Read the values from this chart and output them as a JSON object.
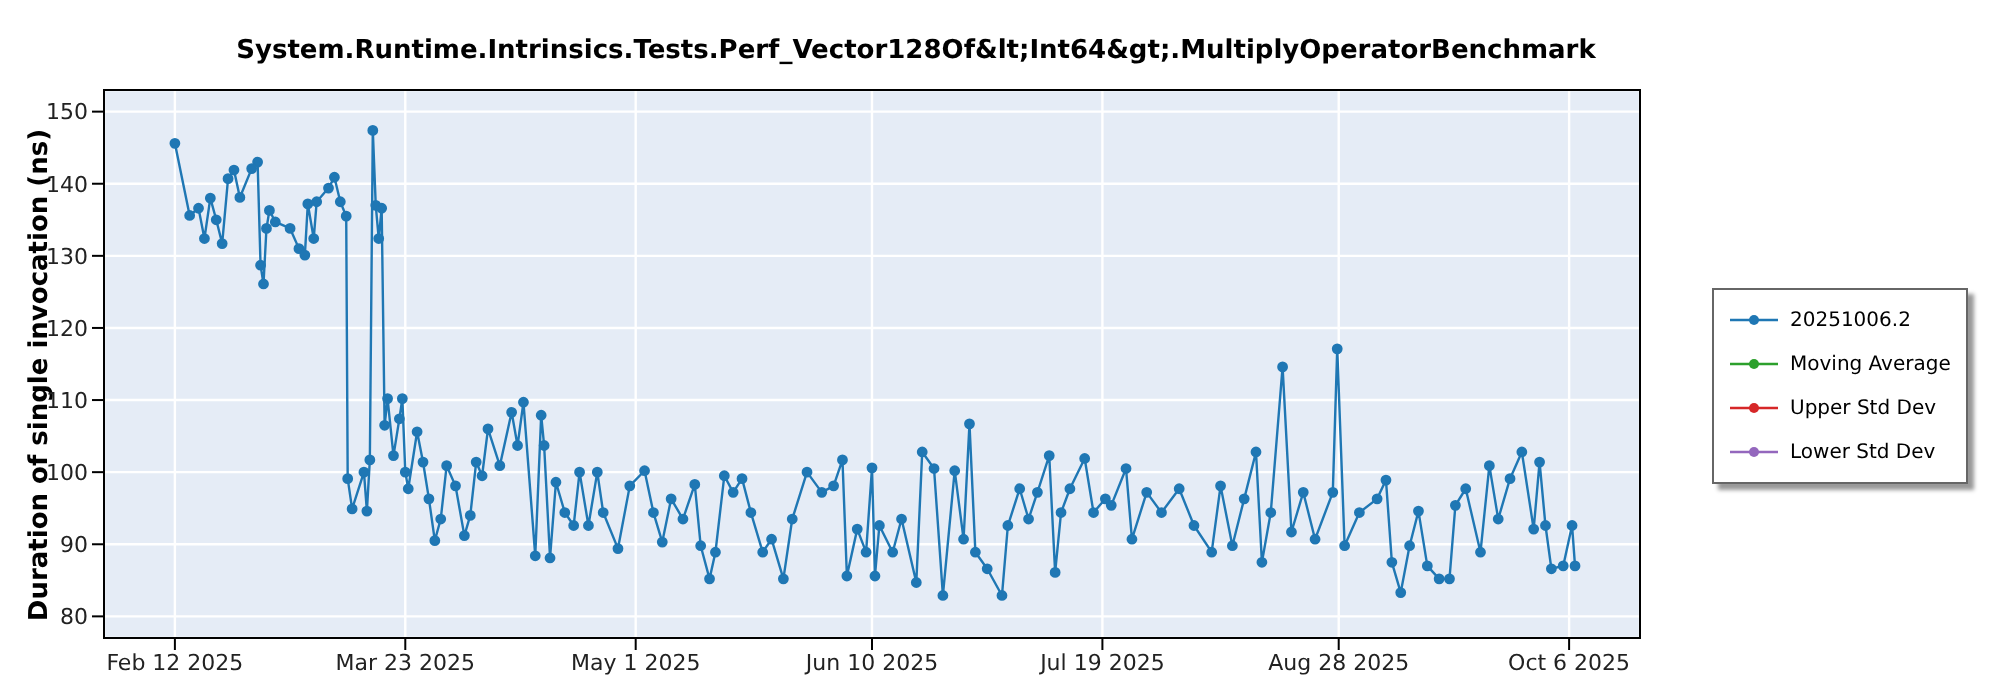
{
  "chart_data": {
    "type": "line",
    "title": "System.Runtime.Intrinsics.Tests.Perf_Vector128Of&lt;Int64&gt;.MultiplyOperatorBenchmark",
    "ylabel": "Duration of single invocation (ns)",
    "x": [
      "2025-02-12",
      "2025-02-14T12:00",
      "2025-02-16",
      "2025-02-17",
      "2025-02-18",
      "2025-02-19",
      "2025-02-20",
      "2025-02-21",
      "2025-02-22",
      "2025-02-23",
      "2025-02-25",
      "2025-02-26",
      "2025-02-26T12:00",
      "2025-02-27",
      "2025-02-27T12:00",
      "2025-02-28",
      "2025-03-01",
      "2025-03-03T12:00",
      "2025-03-05",
      "2025-03-06",
      "2025-03-06T12:00",
      "2025-03-07T12:00",
      "2025-03-08",
      "2025-03-10",
      "2025-03-11",
      "2025-03-12",
      "2025-03-13",
      "2025-03-13T06:00",
      "2025-03-14",
      "2025-03-16",
      "2025-03-16T12:00",
      "2025-03-17",
      "2025-03-17T12:00",
      "2025-03-18",
      "2025-03-18T12:00",
      "2025-03-19",
      "2025-03-19T12:00",
      "2025-03-20",
      "2025-03-21",
      "2025-03-22",
      "2025-03-22T12:00",
      "2025-03-23",
      "2025-03-23T12:00",
      "2025-03-25",
      "2025-03-26",
      "2025-03-27",
      "2025-03-28",
      "2025-03-29",
      "2025-03-30",
      "2025-03-31T12:00",
      "2025-04-02",
      "2025-04-03",
      "2025-04-04",
      "2025-04-05",
      "2025-04-06",
      "2025-04-08",
      "2025-04-10",
      "2025-04-11",
      "2025-04-12",
      "2025-04-14",
      "2025-04-15",
      "2025-04-15T12:00",
      "2025-04-16T12:00",
      "2025-04-17T12:00",
      "2025-04-19",
      "2025-04-20T12:00",
      "2025-04-21T12:00",
      "2025-04-23",
      "2025-04-24T12:00",
      "2025-04-25T12:00",
      "2025-04-28",
      "2025-04-30",
      "2025-05-02T12:00",
      "2025-05-04",
      "2025-05-05T12:00",
      "2025-05-07",
      "2025-05-09",
      "2025-05-11",
      "2025-05-12",
      "2025-05-13T12:00",
      "2025-05-14T12:00",
      "2025-05-16",
      "2025-05-17T12:00",
      "2025-05-19",
      "2025-05-20T12:00",
      "2025-05-22T12:00",
      "2025-05-24",
      "2025-05-26",
      "2025-05-27T12:00",
      "2025-05-30",
      "2025-06-01T12:00",
      "2025-06-03T12:00",
      "2025-06-05",
      "2025-06-05T18:00",
      "2025-06-07T12:00",
      "2025-06-09",
      "2025-06-10",
      "2025-06-10T12:00",
      "2025-06-11T06:00",
      "2025-06-13T12:00",
      "2025-06-15",
      "2025-06-17T12:00",
      "2025-06-18T12:00",
      "2025-06-20T12:00",
      "2025-06-22",
      "2025-06-24",
      "2025-06-25T12:00",
      "2025-06-26T12:00",
      "2025-06-27T12:00",
      "2025-06-29T12:00",
      "2025-07-02",
      "2025-07-03",
      "2025-07-05",
      "2025-07-06T12:00",
      "2025-07-08",
      "2025-07-10",
      "2025-07-11",
      "2025-07-12",
      "2025-07-13T12:00",
      "2025-07-16",
      "2025-07-17T12:00",
      "2025-07-19T12:00",
      "2025-07-20T12:00",
      "2025-07-23",
      "2025-07-24",
      "2025-07-26T12:00",
      "2025-07-29",
      "2025-08-01",
      "2025-08-03T12:00",
      "2025-08-06T12:00",
      "2025-08-08",
      "2025-08-10",
      "2025-08-12",
      "2025-08-14",
      "2025-08-15",
      "2025-08-16T12:00",
      "2025-08-18T12:00",
      "2025-08-20",
      "2025-08-22",
      "2025-08-24",
      "2025-08-27",
      "2025-08-27T18:00",
      "2025-08-29",
      "2025-08-31T12:00",
      "2025-09-03T12:00",
      "2025-09-05",
      "2025-09-06",
      "2025-09-07T12:00",
      "2025-09-09",
      "2025-09-10T12:00",
      "2025-09-12",
      "2025-09-14",
      "2025-09-15T18:00",
      "2025-09-16T18:00",
      "2025-09-18T12:00",
      "2025-09-21",
      "2025-09-22T12:00",
      "2025-09-24",
      "2025-09-26",
      "2025-09-28",
      "2025-09-30",
      "2025-10-01",
      "2025-10-02",
      "2025-10-03",
      "2025-10-05",
      "2025-10-06T12:00",
      "2025-10-07"
    ],
    "series": [
      {
        "name": "20251006.2",
        "color": "#1f77b4",
        "values": [
          145.6,
          135.6,
          136.6,
          132.4,
          138,
          135,
          131.7,
          140.7,
          141.9,
          138.1,
          142.1,
          143,
          128.7,
          126.1,
          133.8,
          136.3,
          134.7,
          133.8,
          131,
          130.1,
          137.2,
          132.4,
          137.5,
          139.4,
          140.9,
          137.5,
          135.5,
          99.1,
          94.9,
          100,
          94.6,
          101.7,
          147.4,
          137,
          132.4,
          136.6,
          106.5,
          110.2,
          102.3,
          107.4,
          110.2,
          100,
          97.7,
          105.6,
          101.4,
          96.3,
          90.5,
          93.5,
          100.9,
          98.1,
          91.2,
          94,
          101.4,
          99.5,
          106,
          100.9,
          108.3,
          103.7,
          109.7,
          88.4,
          107.9,
          103.7,
          88.1,
          98.6,
          94.4,
          92.6,
          100,
          92.6,
          100,
          94.4,
          89.4,
          98.1,
          100.2,
          94.4,
          90.3,
          96.3,
          93.5,
          98.3,
          89.8,
          85.2,
          88.9,
          99.5,
          97.2,
          99.1,
          94.4,
          88.9,
          90.7,
          85.2,
          93.5,
          100,
          97.2,
          98.1,
          101.7,
          85.6,
          92.1,
          88.9,
          100.6,
          85.6,
          92.6,
          88.9,
          93.5,
          84.7,
          102.8,
          100.5,
          82.9,
          100.2,
          90.7,
          106.7,
          88.9,
          86.6,
          82.9,
          92.6,
          97.7,
          93.5,
          97.2,
          102.3,
          86.1,
          94.4,
          97.7,
          101.9,
          94.4,
          96.3,
          95.4,
          100.5,
          90.7,
          97.2,
          94.4,
          97.7,
          92.6,
          88.9,
          98.1,
          89.8,
          96.3,
          102.8,
          87.5,
          94.4,
          114.6,
          91.7,
          97.2,
          90.7,
          97.2,
          117.1,
          89.8,
          94.4,
          96.3,
          98.9,
          87.5,
          83.3,
          89.8,
          94.6,
          87,
          85.2,
          85.2,
          95.4,
          97.7,
          88.9,
          100.9,
          93.5,
          99.1,
          102.8,
          92.1,
          101.4,
          92.6,
          86.6,
          87,
          92.6,
          87
        ]
      },
      {
        "name": "Moving Average",
        "color": "#2ca02c",
        "values": [
          null,
          null,
          null,
          null,
          null,
          null,
          null,
          null,
          null,
          null,
          null,
          null,
          null,
          null,
          null,
          null,
          null,
          null,
          null,
          null,
          null,
          null,
          null,
          null,
          null,
          null,
          null,
          null,
          null,
          null,
          null,
          null,
          null,
          null,
          null,
          null,
          null,
          null,
          null,
          null,
          null,
          null,
          null,
          null,
          null,
          null,
          null,
          null,
          null,
          null,
          null,
          null,
          null,
          null,
          null,
          null,
          null,
          null,
          null,
          null,
          null,
          null,
          null,
          null,
          null,
          null,
          null,
          null,
          null,
          null,
          null,
          null,
          null,
          null,
          null,
          null,
          null,
          null,
          null,
          null,
          null,
          null,
          null,
          null,
          null,
          null,
          null,
          null,
          null,
          null,
          null,
          null,
          null,
          null,
          null,
          null,
          null,
          null,
          null,
          null,
          null,
          null,
          null,
          null,
          null,
          null,
          null,
          null,
          null,
          null,
          null,
          null,
          null,
          null,
          null,
          null,
          null,
          null,
          null,
          null,
          null,
          null,
          null,
          null,
          null,
          null,
          null,
          null,
          null,
          null,
          null,
          null,
          null,
          null,
          null,
          null,
          null,
          null,
          null,
          null,
          null,
          null,
          null,
          null,
          null,
          null,
          null,
          null,
          null,
          null,
          null,
          null,
          null,
          null,
          null,
          null,
          null,
          null,
          null,
          null,
          null,
          null,
          null,
          null,
          null,
          null,
          null
        ]
      },
      {
        "name": "Upper Std Dev",
        "color": "#d62728",
        "values": [
          null,
          null,
          null,
          null,
          null,
          null,
          null,
          null,
          null,
          null,
          null,
          null,
          null,
          null,
          null,
          null,
          null,
          null,
          null,
          null,
          null,
          null,
          null,
          null,
          null,
          null,
          null,
          null,
          null,
          null,
          null,
          null,
          null,
          null,
          null,
          null,
          null,
          null,
          null,
          null,
          null,
          null,
          null,
          null,
          null,
          null,
          null,
          null,
          null,
          null,
          null,
          null,
          null,
          null,
          null,
          null,
          null,
          null,
          null,
          null,
          null,
          null,
          null,
          null,
          null,
          null,
          null,
          null,
          null,
          null,
          null,
          null,
          null,
          null,
          null,
          null,
          null,
          null,
          null,
          null,
          null,
          null,
          null,
          null,
          null,
          null,
          null,
          null,
          null,
          null,
          null,
          null,
          null,
          null,
          null,
          null,
          null,
          null,
          null,
          null,
          null,
          null,
          null,
          null,
          null,
          null,
          null,
          null,
          null,
          null,
          null,
          null,
          null,
          null,
          null,
          null,
          null,
          null,
          null,
          null,
          null,
          null,
          null,
          null,
          null,
          null,
          null,
          null,
          null,
          null,
          null,
          null,
          null,
          null,
          null,
          null,
          null,
          null,
          null,
          null,
          null,
          null,
          null,
          null,
          null,
          null,
          null,
          null,
          null,
          null,
          null,
          null,
          null,
          null,
          null,
          null,
          null,
          null,
          null,
          null,
          null,
          null,
          null,
          null,
          null,
          null,
          null
        ]
      },
      {
        "name": "Lower Std Dev",
        "color": "#9467bd",
        "values": [
          null,
          null,
          null,
          null,
          null,
          null,
          null,
          null,
          null,
          null,
          null,
          null,
          null,
          null,
          null,
          null,
          null,
          null,
          null,
          null,
          null,
          null,
          null,
          null,
          null,
          null,
          null,
          null,
          null,
          null,
          null,
          null,
          null,
          null,
          null,
          null,
          null,
          null,
          null,
          null,
          null,
          null,
          null,
          null,
          null,
          null,
          null,
          null,
          null,
          null,
          null,
          null,
          null,
          null,
          null,
          null,
          null,
          null,
          null,
          null,
          null,
          null,
          null,
          null,
          null,
          null,
          null,
          null,
          null,
          null,
          null,
          null,
          null,
          null,
          null,
          null,
          null,
          null,
          null,
          null,
          null,
          null,
          null,
          null,
          null,
          null,
          null,
          null,
          null,
          null,
          null,
          null,
          null,
          null,
          null,
          null,
          null,
          null,
          null,
          null,
          null,
          null,
          null,
          null,
          null,
          null,
          null,
          null,
          null,
          null,
          null,
          null,
          null,
          null,
          null,
          null,
          null,
          null,
          null,
          null,
          null,
          null,
          null,
          null,
          null,
          null,
          null,
          null,
          null,
          null,
          null,
          null,
          null,
          null,
          null,
          null,
          null,
          null,
          null,
          null,
          null,
          null,
          null,
          null,
          null,
          null,
          null,
          null,
          null,
          null,
          null,
          null,
          null,
          null,
          null,
          null,
          null,
          null,
          null,
          null,
          null,
          null,
          null,
          null,
          null,
          null,
          null
        ]
      }
    ],
    "xlim": [
      "2025-01-31",
      "2025-10-18"
    ],
    "xticks": [
      {
        "value": "2025-02-12",
        "label": "Feb 12 2025"
      },
      {
        "value": "2025-03-23",
        "label": "Mar 23 2025"
      },
      {
        "value": "2025-05-01",
        "label": "May 1 2025"
      },
      {
        "value": "2025-06-10",
        "label": "Jun 10 2025"
      },
      {
        "value": "2025-07-19",
        "label": "Jul 19 2025"
      },
      {
        "value": "2025-08-28",
        "label": "Aug 28 2025"
      },
      {
        "value": "2025-10-06",
        "label": "Oct 6 2025"
      }
    ],
    "ylim": [
      77,
      153
    ],
    "yticks": [
      80,
      90,
      100,
      110,
      120,
      130,
      140,
      150
    ],
    "grid": true,
    "legend": "right",
    "marker": "circle",
    "line_style": "solid"
  }
}
